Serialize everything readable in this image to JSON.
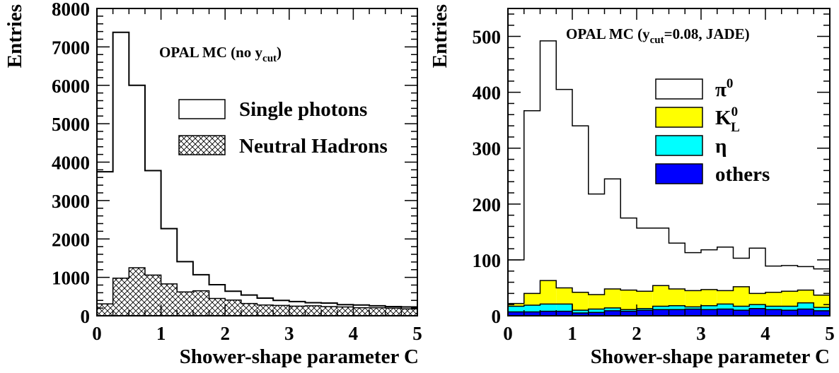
{
  "colors": {
    "gamma": "#ffffff",
    "hadrons_hatch": "#000000",
    "pi0": "#ffffff",
    "kl0": "#ffff00",
    "eta": "#00ffff",
    "others": "#0000ff",
    "axes": "#000000"
  },
  "chart_data": [
    {
      "type": "histogram",
      "annotation": {
        "main": "OPAL MC (no y",
        "sub": "cut",
        "close": ")"
      },
      "xlabel": "Shower-shape parameter C",
      "ylabel": "Entries",
      "xlim": [
        0,
        5
      ],
      "ylim": [
        0,
        8000
      ],
      "xticks": [
        "0",
        "1",
        "2",
        "3",
        "4",
        "5"
      ],
      "yticks": [
        "0",
        "1000",
        "2000",
        "3000",
        "4000",
        "5000",
        "6000",
        "7000",
        "8000"
      ],
      "bin_edges": [
        0,
        0.25,
        0.5,
        0.75,
        1.0,
        1.25,
        1.5,
        1.75,
        2.0,
        2.25,
        2.5,
        2.75,
        3.0,
        3.25,
        3.5,
        3.75,
        4.0,
        4.25,
        4.5,
        4.75,
        5.0
      ],
      "legend_position": "right-middle",
      "series": [
        {
          "name": "Single photons",
          "style": "outline",
          "values": [
            3750,
            7380,
            6000,
            3780,
            2270,
            1410,
            1070,
            810,
            640,
            540,
            460,
            400,
            370,
            340,
            330,
            290,
            280,
            260,
            240,
            230
          ]
        },
        {
          "name": "Neutral Hadrons",
          "style": "hatched",
          "values": [
            310,
            980,
            1250,
            1060,
            830,
            620,
            650,
            450,
            410,
            320,
            280,
            270,
            250,
            260,
            240,
            230,
            210,
            210,
            200,
            180
          ]
        }
      ]
    },
    {
      "type": "stacked_histogram",
      "annotation": {
        "main": "OPAL MC (y",
        "sub": "cut",
        "rest": "=0.08, JADE)"
      },
      "xlabel": "Shower-shape parameter C",
      "ylabel": "Entries",
      "xlim": [
        0,
        5
      ],
      "ylim": [
        0,
        550
      ],
      "xticks": [
        "0",
        "1",
        "2",
        "3",
        "4",
        "5"
      ],
      "yticks": [
        "0",
        "100",
        "200",
        "300",
        "400",
        "500"
      ],
      "bin_edges": [
        0,
        0.25,
        0.5,
        0.75,
        1.0,
        1.25,
        1.5,
        1.75,
        2.0,
        2.25,
        2.5,
        2.75,
        3.0,
        3.25,
        3.5,
        3.75,
        4.0,
        4.25,
        4.5,
        4.75,
        5.0
      ],
      "legend_position": "right-middle",
      "stack_totals": {
        "pi0": [
          100,
          367,
          492,
          405,
          340,
          218,
          245,
          175,
          157,
          157,
          130,
          113,
          118,
          123,
          103,
          121,
          89,
          90,
          88,
          84
        ],
        "kl0": [
          22,
          40,
          63,
          50,
          42,
          38,
          48,
          46,
          44,
          54,
          48,
          45,
          47,
          45,
          52,
          40,
          42,
          44,
          46,
          37
        ],
        "eta": [
          17,
          19,
          21,
          21,
          10,
          12,
          14,
          11,
          13,
          17,
          18,
          16,
          18,
          21,
          17,
          20,
          17,
          17,
          23,
          15
        ],
        "others": [
          7,
          7,
          8,
          8,
          5,
          6,
          9,
          8,
          10,
          11,
          11,
          12,
          11,
          12,
          10,
          13,
          11,
          10,
          12,
          9
        ]
      },
      "legend": [
        {
          "key": "pi0",
          "label": "π",
          "sup": "0",
          "sub": ""
        },
        {
          "key": "kl0",
          "label": "K",
          "sup": "0",
          "sub": "L"
        },
        {
          "key": "eta",
          "label": "η",
          "sup": "",
          "sub": ""
        },
        {
          "key": "others",
          "label": "others",
          "sup": "",
          "sub": ""
        }
      ]
    }
  ]
}
